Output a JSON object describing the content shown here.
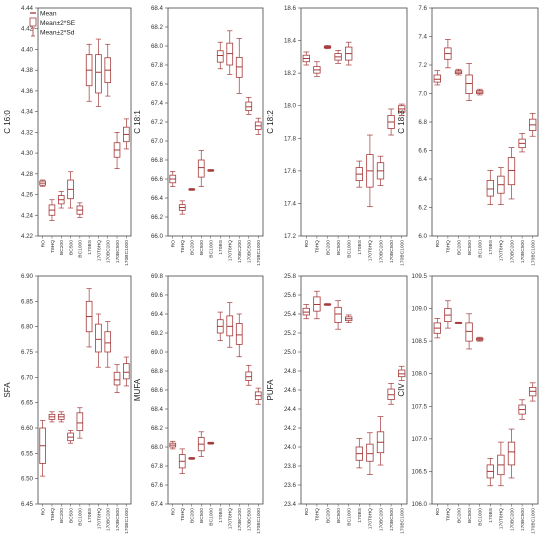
{
  "legend": {
    "mean_label": "Mean",
    "se_label": "Mean±2*SE",
    "sd_label": "Mean±2*Sd"
  },
  "colors": {
    "box": "#a53a3a",
    "axis": "#444444",
    "grid": "#cccccc"
  },
  "categories": [
    "RO",
    "T8HQ",
    "BC200",
    "BC500",
    "BC1000",
    "170BS",
    "170T8HQ",
    "170BC200",
    "170BC500",
    "170BC1000"
  ],
  "chart_data": [
    {
      "type": "box",
      "ylabel": "C 16:0",
      "ylim": [
        4.22,
        4.44
      ],
      "ticks": [
        4.22,
        4.24,
        4.26,
        4.28,
        4.3,
        4.32,
        4.34,
        4.36,
        4.38,
        4.4,
        4.42,
        4.44
      ],
      "series": [
        {
          "mean": 4.271,
          "se": [
            4.269,
            4.273
          ],
          "sd": [
            4.268,
            4.274
          ]
        },
        {
          "mean": 4.245,
          "se": [
            4.24,
            4.25
          ],
          "sd": [
            4.235,
            4.255
          ]
        },
        {
          "mean": 4.255,
          "se": [
            4.251,
            4.259
          ],
          "sd": [
            4.247,
            4.263
          ]
        },
        {
          "mean": 4.265,
          "se": [
            4.256,
            4.274
          ],
          "sd": [
            4.247,
            4.282
          ]
        },
        {
          "mean": 4.245,
          "se": [
            4.241,
            4.249
          ],
          "sd": [
            4.238,
            4.252
          ]
        },
        {
          "mean": 4.38,
          "se": [
            4.365,
            4.395
          ],
          "sd": [
            4.35,
            4.405
          ]
        },
        {
          "mean": 4.378,
          "se": [
            4.358,
            4.395
          ],
          "sd": [
            4.345,
            4.41
          ]
        },
        {
          "mean": 4.38,
          "se": [
            4.368,
            4.392
          ],
          "sd": [
            4.355,
            4.405
          ]
        },
        {
          "mean": 4.303,
          "se": [
            4.296,
            4.31
          ],
          "sd": [
            4.285,
            4.32
          ]
        },
        {
          "mean": 4.318,
          "se": [
            4.311,
            4.325
          ],
          "sd": [
            4.304,
            4.333
          ]
        }
      ]
    },
    {
      "type": "box",
      "ylabel": "C 18:1",
      "ylim": [
        66.0,
        68.4
      ],
      "ticks": [
        66.0,
        66.2,
        66.4,
        66.6,
        66.8,
        67.0,
        67.2,
        67.4,
        67.6,
        67.8,
        68.0,
        68.2,
        68.4
      ],
      "series": [
        {
          "mean": 66.6,
          "se": [
            66.56,
            66.64
          ],
          "sd": [
            66.52,
            66.68
          ]
        },
        {
          "mean": 66.3,
          "se": [
            66.27,
            66.33
          ],
          "sd": [
            66.23,
            66.37
          ]
        },
        {
          "mean": 66.49,
          "se": [
            66.485,
            66.495
          ],
          "sd": [
            66.48,
            66.5
          ]
        },
        {
          "mean": 66.72,
          "se": [
            66.62,
            66.8
          ],
          "sd": [
            66.52,
            66.9
          ]
        },
        {
          "mean": 66.69,
          "se": [
            66.685,
            66.695
          ],
          "sd": [
            66.68,
            66.7
          ]
        },
        {
          "mean": 67.9,
          "se": [
            67.83,
            67.95
          ],
          "sd": [
            67.76,
            68.04
          ]
        },
        {
          "mean": 67.92,
          "se": [
            67.8,
            68.03
          ],
          "sd": [
            67.7,
            68.16
          ]
        },
        {
          "mean": 67.78,
          "se": [
            67.67,
            67.88
          ],
          "sd": [
            67.5,
            68.08
          ]
        },
        {
          "mean": 67.36,
          "se": [
            67.32,
            67.41
          ],
          "sd": [
            67.28,
            67.46
          ]
        },
        {
          "mean": 67.16,
          "se": [
            67.12,
            67.2
          ],
          "sd": [
            67.07,
            67.24
          ]
        }
      ]
    },
    {
      "type": "box",
      "ylabel": "C 18:2",
      "ylim": [
        17.2,
        18.6
      ],
      "ticks": [
        17.2,
        17.4,
        17.6,
        17.8,
        18.0,
        18.2,
        18.4,
        18.6
      ],
      "series": [
        {
          "mean": 18.29,
          "se": [
            18.27,
            18.31
          ],
          "sd": [
            18.25,
            18.33
          ]
        },
        {
          "mean": 18.22,
          "se": [
            18.2,
            18.24
          ],
          "sd": [
            18.18,
            18.27
          ]
        },
        {
          "mean": 18.36,
          "se": [
            18.355,
            18.365
          ],
          "sd": [
            18.35,
            18.37
          ]
        },
        {
          "mean": 18.3,
          "se": [
            18.28,
            18.32
          ],
          "sd": [
            18.26,
            18.34
          ]
        },
        {
          "mean": 18.32,
          "se": [
            18.28,
            18.36
          ],
          "sd": [
            18.25,
            18.39
          ]
        },
        {
          "mean": 17.58,
          "se": [
            17.54,
            17.62
          ],
          "sd": [
            17.5,
            17.66
          ]
        },
        {
          "mean": 17.6,
          "se": [
            17.5,
            17.7
          ],
          "sd": [
            17.38,
            17.82
          ]
        },
        {
          "mean": 17.6,
          "se": [
            17.55,
            17.65
          ],
          "sd": [
            17.51,
            17.69
          ]
        },
        {
          "mean": 17.9,
          "se": [
            17.86,
            17.94
          ],
          "sd": [
            17.82,
            17.98
          ]
        },
        {
          "mean": 17.98,
          "se": [
            17.96,
            18.0
          ],
          "sd": [
            17.94,
            18.01
          ]
        }
      ]
    },
    {
      "type": "box",
      "ylabel": "C 18:3",
      "ylim": [
        6.0,
        7.6
      ],
      "ticks": [
        6.0,
        6.2,
        6.4,
        6.6,
        6.8,
        7.0,
        7.2,
        7.4,
        7.6
      ],
      "series": [
        {
          "mean": 7.1,
          "se": [
            7.08,
            7.13
          ],
          "sd": [
            7.06,
            7.16
          ]
        },
        {
          "mean": 7.28,
          "se": [
            7.24,
            7.32
          ],
          "sd": [
            7.18,
            7.38
          ]
        },
        {
          "mean": 7.15,
          "se": [
            7.14,
            7.16
          ],
          "sd": [
            7.13,
            7.17
          ]
        },
        {
          "mean": 7.07,
          "se": [
            7.0,
            7.13
          ],
          "sd": [
            6.95,
            7.21
          ]
        },
        {
          "mean": 7.01,
          "se": [
            7.0,
            7.02
          ],
          "sd": [
            6.99,
            7.03
          ]
        },
        {
          "mean": 6.33,
          "se": [
            6.28,
            6.39
          ],
          "sd": [
            6.22,
            6.46
          ]
        },
        {
          "mean": 6.36,
          "se": [
            6.3,
            6.42
          ],
          "sd": [
            6.22,
            6.48
          ]
        },
        {
          "mean": 6.46,
          "se": [
            6.36,
            6.55
          ],
          "sd": [
            6.26,
            6.62
          ]
        },
        {
          "mean": 6.65,
          "se": [
            6.62,
            6.68
          ],
          "sd": [
            6.59,
            6.72
          ]
        },
        {
          "mean": 6.78,
          "se": [
            6.74,
            6.82
          ],
          "sd": [
            6.7,
            6.86
          ]
        }
      ]
    },
    {
      "type": "box",
      "ylabel": "SFA",
      "ylim": [
        6.45,
        6.9
      ],
      "ticks": [
        6.45,
        6.5,
        6.55,
        6.6,
        6.65,
        6.7,
        6.75,
        6.8,
        6.85,
        6.9
      ],
      "series": [
        {
          "mean": 6.565,
          "se": [
            6.53,
            6.6
          ],
          "sd": [
            6.505,
            6.615
          ]
        },
        {
          "mean": 6.622,
          "se": [
            6.617,
            6.627
          ],
          "sd": [
            6.612,
            6.632
          ]
        },
        {
          "mean": 6.622,
          "se": [
            6.617,
            6.627
          ],
          "sd": [
            6.612,
            6.632
          ]
        },
        {
          "mean": 6.582,
          "se": [
            6.575,
            6.59
          ],
          "sd": [
            6.57,
            6.595
          ]
        },
        {
          "mean": 6.61,
          "se": [
            6.595,
            6.63
          ],
          "sd": [
            6.58,
            6.64
          ]
        },
        {
          "mean": 6.82,
          "se": [
            6.79,
            6.85
          ],
          "sd": [
            6.76,
            6.875
          ]
        },
        {
          "mean": 6.775,
          "se": [
            6.75,
            6.805
          ],
          "sd": [
            6.72,
            6.825
          ]
        },
        {
          "mean": 6.768,
          "se": [
            6.75,
            6.79
          ],
          "sd": [
            6.72,
            6.81
          ]
        },
        {
          "mean": 6.695,
          "se": [
            6.685,
            6.71
          ],
          "sd": [
            6.67,
            6.725
          ]
        },
        {
          "mean": 6.71,
          "se": [
            6.697,
            6.727
          ],
          "sd": [
            6.683,
            6.74
          ]
        }
      ]
    },
    {
      "type": "box",
      "ylabel": "MUFA",
      "ylim": [
        67.4,
        69.8
      ],
      "ticks": [
        67.4,
        67.6,
        67.8,
        68.0,
        68.2,
        68.4,
        68.6,
        68.8,
        69.0,
        69.2,
        69.4,
        69.6,
        69.8
      ],
      "series": [
        {
          "mean": 68.02,
          "se": [
            68.0,
            68.04
          ],
          "sd": [
            67.98,
            68.06
          ]
        },
        {
          "mean": 67.85,
          "se": [
            67.78,
            67.92
          ],
          "sd": [
            67.72,
            67.98
          ]
        },
        {
          "mean": 67.88,
          "se": [
            67.875,
            67.885
          ],
          "sd": [
            67.87,
            67.89
          ]
        },
        {
          "mean": 68.03,
          "se": [
            67.96,
            68.1
          ],
          "sd": [
            67.9,
            68.16
          ]
        },
        {
          "mean": 68.04,
          "se": [
            68.035,
            68.045
          ],
          "sd": [
            68.03,
            68.05
          ]
        },
        {
          "mean": 69.27,
          "se": [
            69.2,
            69.34
          ],
          "sd": [
            69.12,
            69.42
          ]
        },
        {
          "mean": 69.27,
          "se": [
            69.17,
            69.38
          ],
          "sd": [
            69.05,
            69.52
          ]
        },
        {
          "mean": 69.18,
          "se": [
            69.08,
            69.3
          ],
          "sd": [
            68.95,
            69.4
          ]
        },
        {
          "mean": 68.74,
          "se": [
            68.7,
            68.79
          ],
          "sd": [
            68.65,
            68.86
          ]
        },
        {
          "mean": 68.54,
          "se": [
            68.5,
            68.58
          ],
          "sd": [
            68.45,
            68.62
          ]
        }
      ]
    },
    {
      "type": "box",
      "ylabel": "PUFA",
      "ylim": [
        23.4,
        25.8
      ],
      "ticks": [
        23.4,
        23.6,
        23.8,
        24.0,
        24.2,
        24.4,
        24.6,
        24.8,
        25.0,
        25.2,
        25.4,
        25.6,
        25.8
      ],
      "series": [
        {
          "mean": 25.42,
          "se": [
            25.39,
            25.46
          ],
          "sd": [
            25.35,
            25.5
          ]
        },
        {
          "mean": 25.5,
          "se": [
            25.43,
            25.58
          ],
          "sd": [
            25.35,
            25.64
          ]
        },
        {
          "mean": 25.5,
          "se": [
            25.495,
            25.505
          ],
          "sd": [
            25.49,
            25.51
          ]
        },
        {
          "mean": 25.4,
          "se": [
            25.31,
            25.47
          ],
          "sd": [
            25.24,
            25.54
          ]
        },
        {
          "mean": 25.35,
          "se": [
            25.33,
            25.37
          ],
          "sd": [
            25.31,
            25.39
          ]
        },
        {
          "mean": 23.93,
          "se": [
            23.86,
            24.0
          ],
          "sd": [
            23.78,
            24.09
          ]
        },
        {
          "mean": 23.93,
          "se": [
            23.85,
            24.03
          ],
          "sd": [
            23.71,
            24.15
          ]
        },
        {
          "mean": 24.05,
          "se": [
            23.94,
            24.16
          ],
          "sd": [
            23.81,
            24.32
          ]
        },
        {
          "mean": 24.55,
          "se": [
            24.5,
            24.61
          ],
          "sd": [
            24.45,
            24.67
          ]
        },
        {
          "mean": 24.77,
          "se": [
            24.74,
            24.81
          ],
          "sd": [
            24.7,
            24.85
          ]
        }
      ]
    },
    {
      "type": "box",
      "ylabel": "CIV",
      "ylim": [
        106.0,
        109.5
      ],
      "ticks": [
        106.0,
        106.5,
        107.0,
        107.5,
        108.0,
        108.5,
        109.0,
        109.5
      ],
      "series": [
        {
          "mean": 108.7,
          "se": [
            108.62,
            108.78
          ],
          "sd": [
            108.55,
            108.85
          ]
        },
        {
          "mean": 108.9,
          "se": [
            108.8,
            109.0
          ],
          "sd": [
            108.7,
            109.12
          ]
        },
        {
          "mean": 108.78,
          "se": [
            108.775,
            108.785
          ],
          "sd": [
            108.77,
            108.79
          ]
        },
        {
          "mean": 108.65,
          "se": [
            108.5,
            108.78
          ],
          "sd": [
            108.38,
            108.92
          ]
        },
        {
          "mean": 108.53,
          "se": [
            108.515,
            108.545
          ],
          "sd": [
            108.5,
            108.56
          ]
        },
        {
          "mean": 106.5,
          "se": [
            106.4,
            106.6
          ],
          "sd": [
            106.28,
            106.7
          ]
        },
        {
          "mean": 106.6,
          "se": [
            106.45,
            106.75
          ],
          "sd": [
            106.28,
            106.95
          ]
        },
        {
          "mean": 106.8,
          "se": [
            106.6,
            106.95
          ],
          "sd": [
            106.4,
            107.15
          ]
        },
        {
          "mean": 107.45,
          "se": [
            107.38,
            107.52
          ],
          "sd": [
            107.3,
            107.6
          ]
        },
        {
          "mean": 107.73,
          "se": [
            107.66,
            107.79
          ],
          "sd": [
            107.58,
            107.86
          ]
        }
      ]
    }
  ]
}
